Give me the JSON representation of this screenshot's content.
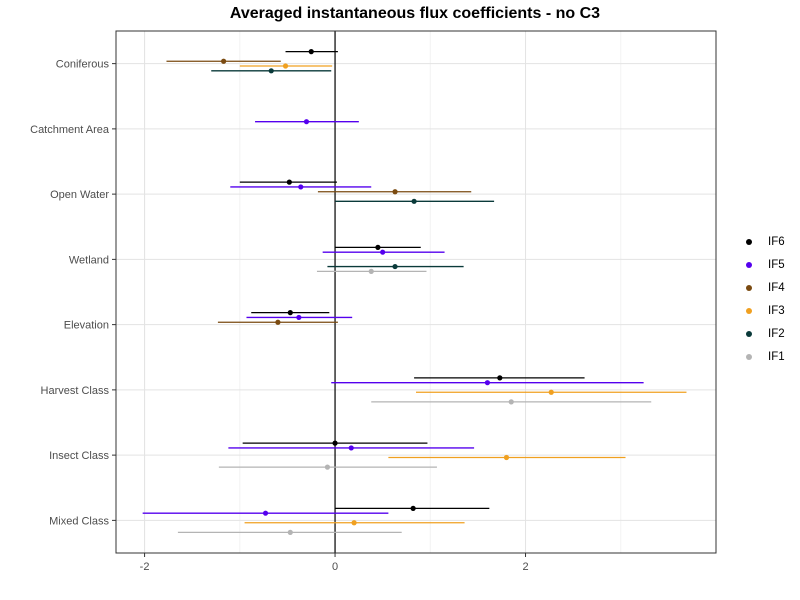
{
  "chart_data": {
    "type": "scatter",
    "title": "Averaged instantaneous flux coefficients - no C3",
    "xlabel": "",
    "ylabel": "",
    "xlim": [
      -2.3,
      4.0
    ],
    "x_ticks": [
      -2,
      0,
      2
    ],
    "grid": true,
    "legend_position": "right",
    "categories": [
      "Coniferous",
      "Catchment Area",
      "Open Water",
      "Wetland",
      "Elevation",
      "Harvest Class",
      "Insect Class",
      "Mixed Class"
    ],
    "series": [
      {
        "name": "IF6",
        "color": "#000000",
        "points": [
          {
            "category": "Coniferous",
            "estimate": -0.25,
            "lower": -0.52,
            "upper": 0.03
          },
          {
            "category": "Open Water",
            "estimate": -0.48,
            "lower": -1.0,
            "upper": 0.02
          },
          {
            "category": "Wetland",
            "estimate": 0.45,
            "lower": 0.0,
            "upper": 0.9
          },
          {
            "category": "Elevation",
            "estimate": -0.47,
            "lower": -0.88,
            "upper": -0.06
          },
          {
            "category": "Harvest Class",
            "estimate": 1.73,
            "lower": 0.83,
            "upper": 2.62
          },
          {
            "category": "Insect Class",
            "estimate": 0.0,
            "lower": -0.97,
            "upper": 0.97
          },
          {
            "category": "Mixed Class",
            "estimate": 0.82,
            "lower": 0.0,
            "upper": 1.62
          }
        ]
      },
      {
        "name": "IF5",
        "color": "#5500ee",
        "points": [
          {
            "category": "Catchment Area",
            "estimate": -0.3,
            "lower": -0.84,
            "upper": 0.25
          },
          {
            "category": "Open Water",
            "estimate": -0.36,
            "lower": -1.1,
            "upper": 0.38
          },
          {
            "category": "Wetland",
            "estimate": 0.5,
            "lower": -0.13,
            "upper": 1.15
          },
          {
            "category": "Elevation",
            "estimate": -0.38,
            "lower": -0.93,
            "upper": 0.18
          },
          {
            "category": "Harvest Class",
            "estimate": 1.6,
            "lower": -0.04,
            "upper": 3.24
          },
          {
            "category": "Insect Class",
            "estimate": 0.17,
            "lower": -1.12,
            "upper": 1.46
          },
          {
            "category": "Mixed Class",
            "estimate": -0.73,
            "lower": -2.02,
            "upper": 0.56
          }
        ]
      },
      {
        "name": "IF4",
        "color": "#7a4a10",
        "points": [
          {
            "category": "Coniferous",
            "estimate": -1.17,
            "lower": -1.77,
            "upper": -0.57
          },
          {
            "category": "Open Water",
            "estimate": 0.63,
            "lower": -0.18,
            "upper": 1.43
          },
          {
            "category": "Elevation",
            "estimate": -0.6,
            "lower": -1.23,
            "upper": 0.03
          }
        ]
      },
      {
        "name": "IF3",
        "color": "#f0a020",
        "points": [
          {
            "category": "Coniferous",
            "estimate": -0.52,
            "lower": -1.0,
            "upper": -0.03
          },
          {
            "category": "Harvest Class",
            "estimate": 2.27,
            "lower": 0.85,
            "upper": 3.69
          },
          {
            "category": "Insect Class",
            "estimate": 1.8,
            "lower": 0.56,
            "upper": 3.05
          },
          {
            "category": "Mixed Class",
            "estimate": 0.2,
            "lower": -0.95,
            "upper": 1.36
          }
        ]
      },
      {
        "name": "IF2",
        "color": "#0a3a3a",
        "points": [
          {
            "category": "Coniferous",
            "estimate": -0.67,
            "lower": -1.3,
            "upper": -0.04
          },
          {
            "category": "Open Water",
            "estimate": 0.83,
            "lower": 0.0,
            "upper": 1.67
          },
          {
            "category": "Wetland",
            "estimate": 0.63,
            "lower": -0.08,
            "upper": 1.35
          }
        ]
      },
      {
        "name": "IF1",
        "color": "#b4b4b4",
        "points": [
          {
            "category": "Wetland",
            "estimate": 0.38,
            "lower": -0.19,
            "upper": 0.96
          },
          {
            "category": "Harvest Class",
            "estimate": 1.85,
            "lower": 0.38,
            "upper": 3.32
          },
          {
            "category": "Insect Class",
            "estimate": -0.08,
            "lower": -1.22,
            "upper": 1.07
          },
          {
            "category": "Mixed Class",
            "estimate": -0.47,
            "lower": -1.65,
            "upper": 0.7
          }
        ]
      }
    ]
  }
}
